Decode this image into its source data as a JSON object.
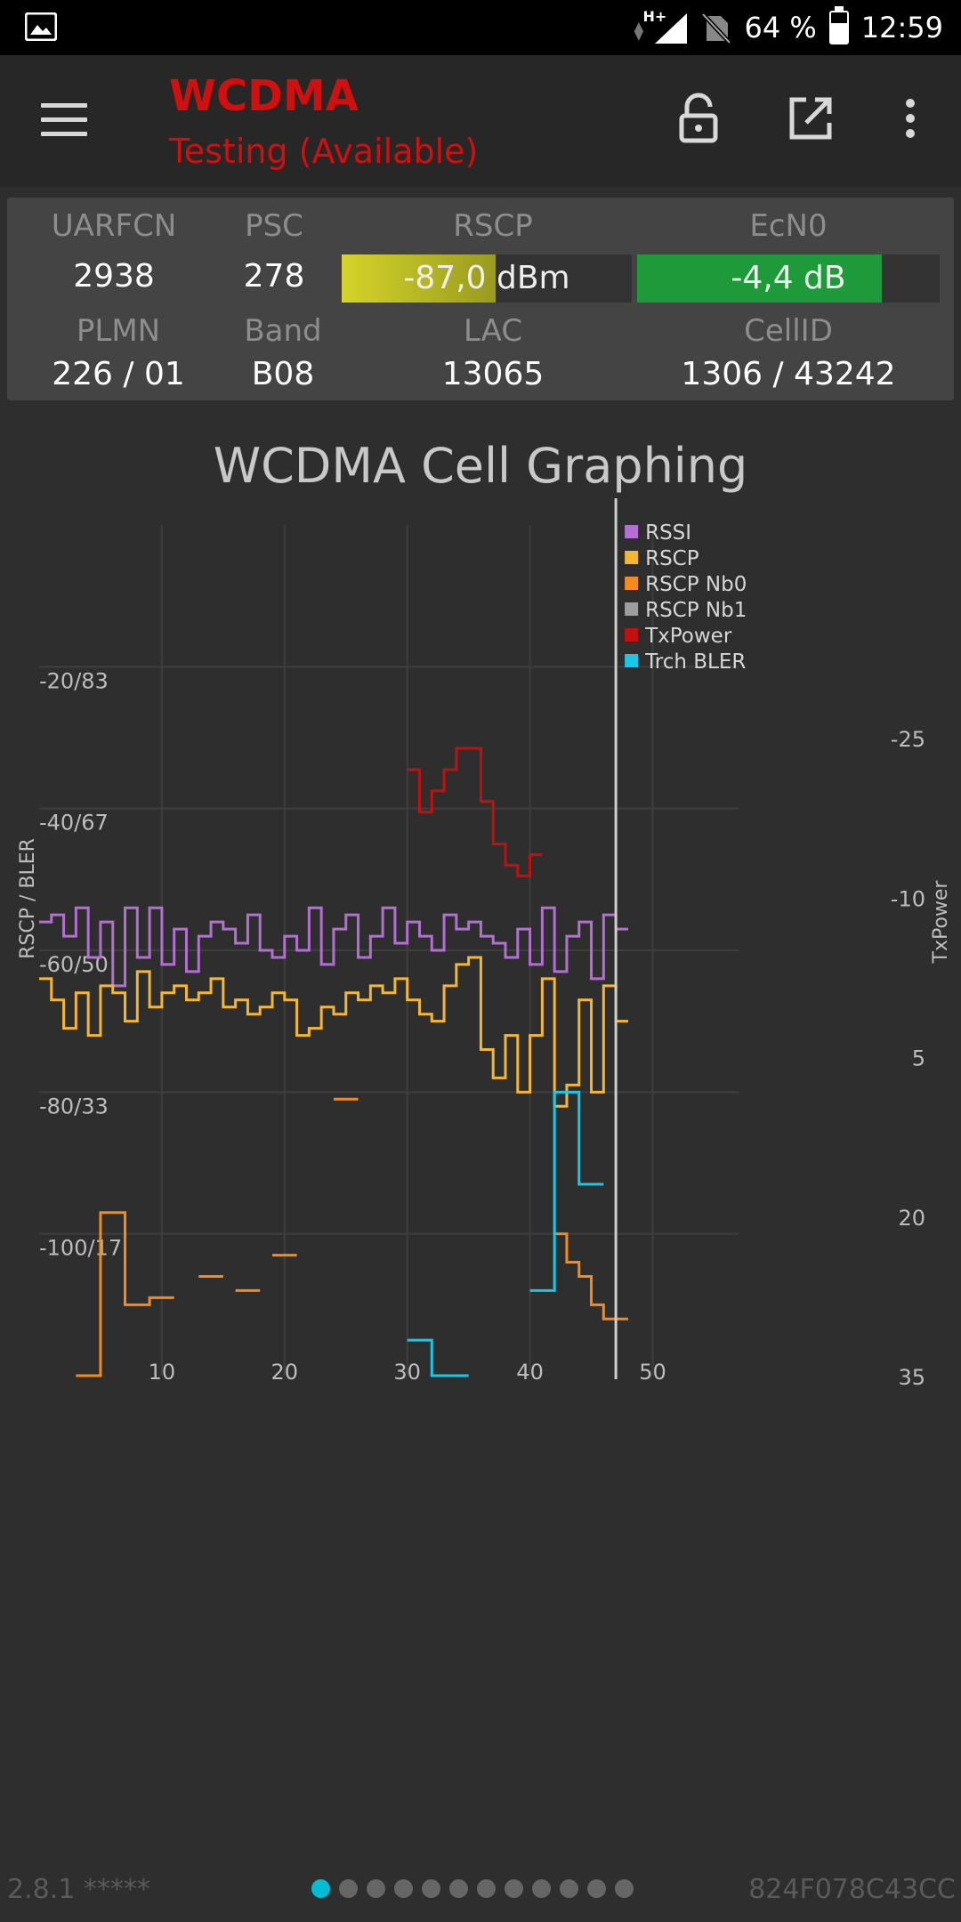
{
  "status_bar": {
    "network": "H+",
    "battery": "64 %",
    "battery_level": 0.64,
    "time": "12:59"
  },
  "app_bar": {
    "title": "WCDMA",
    "subtitle": "Testing (Available)",
    "icons": [
      "menu-icon",
      "lock-open-icon",
      "open-external-icon",
      "more-vert-icon"
    ]
  },
  "info": {
    "uarfcn_label": "UARFCN",
    "uarfcn": "2938",
    "psc_label": "PSC",
    "psc": "278",
    "rscp_label": "RSCP",
    "rscp": "-87,0 dBm",
    "rscp_level": 0.53,
    "ecn0_label": "EcN0",
    "ecn0": "-4,4 dB",
    "ecn0_level": 0.81,
    "plmn_label": "PLMN",
    "plmn": "226 / 01",
    "band_label": "Band",
    "band": "B08",
    "lac_label": "LAC",
    "lac": "13065",
    "cellid_label": "CellID",
    "cellid": "1306 / 43242"
  },
  "colors": {
    "rssi": "#b36fd1",
    "rscp": "#f5b731",
    "rscp_nb0": "#f58a1f",
    "rscp_nb1": "#9e9e9e",
    "txpower": "#c40f0f",
    "trch_bler": "#18c8e8",
    "accent": "#d10f0f",
    "rscp_meter": "#d4d42a",
    "ecn0_meter": "#1f9a3a"
  },
  "chart_data": {
    "type": "line",
    "title": "WCDMA Cell Graphing",
    "ylabel": "RSCP / BLER",
    "y2label": "TxPower",
    "x_ticks": [
      "10",
      "20",
      "30",
      "40",
      "50"
    ],
    "y_ticks": [
      "-20/83",
      "-40/67",
      "-60/50",
      "-80/33",
      "-100/17"
    ],
    "y2_ticks": [
      "-25",
      "-10",
      "5",
      "20",
      "35"
    ],
    "xlim": [
      0,
      57
    ],
    "ylim": [
      -120,
      0
    ],
    "y2lim": [
      -45,
      35
    ],
    "cursor_x": 47,
    "legend": [
      "RSSI",
      "RSCP",
      "RSCP Nb0",
      "RSCP Nb1",
      "TxPower",
      "Trch BLER"
    ],
    "series": [
      {
        "name": "RSSI",
        "axis": "left",
        "x": [
          0,
          1,
          2,
          3,
          4,
          5,
          6,
          7,
          8,
          9,
          10,
          11,
          12,
          13,
          14,
          15,
          16,
          17,
          18,
          19,
          20,
          21,
          22,
          23,
          24,
          25,
          26,
          27,
          28,
          29,
          30,
          31,
          32,
          33,
          34,
          35,
          36,
          37,
          38,
          39,
          40,
          41,
          42,
          43,
          44,
          45,
          46,
          47
        ],
        "y": [
          -56,
          -55,
          -58,
          -54,
          -61,
          -56,
          -65,
          -54,
          -61,
          -54,
          -62,
          -57,
          -63,
          -58,
          -56,
          -57,
          -59,
          -55,
          -60,
          -61,
          -58,
          -60,
          -54,
          -62,
          -57,
          -55,
          -61,
          -58,
          -54,
          -59,
          -56,
          -58,
          -60,
          -55,
          -57,
          -56,
          -58,
          -59,
          -61,
          -57,
          -62,
          -54,
          -63,
          -58,
          -56,
          -64,
          -55,
          -57
        ]
      },
      {
        "name": "RSCP",
        "axis": "left",
        "x": [
          0,
          1,
          2,
          3,
          4,
          5,
          6,
          7,
          8,
          9,
          10,
          11,
          12,
          13,
          14,
          15,
          16,
          17,
          18,
          19,
          20,
          21,
          22,
          23,
          24,
          25,
          26,
          27,
          28,
          29,
          30,
          31,
          32,
          33,
          34,
          35,
          36,
          37,
          38,
          39,
          40,
          41,
          42,
          43,
          44,
          45,
          46,
          47
        ],
        "y": [
          -64,
          -67,
          -71,
          -66,
          -72,
          -65,
          -66,
          -70,
          -63,
          -68,
          -66,
          -65,
          -67,
          -66,
          -64,
          -68,
          -67,
          -69,
          -68,
          -66,
          -67,
          -72,
          -71,
          -68,
          -69,
          -66,
          -67,
          -65,
          -66,
          -64,
          -67,
          -69,
          -70,
          -65,
          -62,
          -61,
          -74,
          -78,
          -72,
          -80,
          -72,
          -64,
          -82,
          -79,
          -67,
          -80,
          -65,
          -70
        ]
      },
      {
        "name": "RSCP Nb0",
        "axis": "left",
        "x": [
          3,
          4,
          5,
          6,
          7,
          8,
          9,
          10,
          11,
          12,
          13,
          14,
          15,
          16,
          17,
          18,
          19,
          20,
          21,
          22,
          23,
          24,
          25,
          26,
          27,
          28,
          29,
          30,
          31,
          32,
          33,
          34,
          35,
          36,
          37,
          38,
          39,
          40,
          41,
          42,
          43,
          44,
          45,
          46,
          47
        ],
        "y": [
          -120,
          -120,
          -97,
          -97,
          -110,
          -110,
          -109,
          -109,
          null,
          null,
          -106,
          -106,
          null,
          -108,
          -108,
          null,
          -103,
          -103,
          null,
          null,
          null,
          -81,
          -81,
          null,
          null,
          null,
          null,
          null,
          null,
          null,
          null,
          null,
          null,
          null,
          null,
          null,
          null,
          null,
          null,
          -100,
          -104,
          -106,
          -110,
          -112,
          -112
        ]
      },
      {
        "name": "RSCP Nb1",
        "axis": "left",
        "x": [],
        "y": []
      },
      {
        "name": "TxPower",
        "axis": "right",
        "x": [
          30,
          31,
          32,
          33,
          34,
          35,
          36,
          37,
          38,
          39,
          40
        ],
        "y": [
          -22,
          -18,
          -20,
          -22,
          -24,
          -24,
          -19,
          -15,
          -13,
          -12,
          -14
        ]
      },
      {
        "name": "Trch BLER",
        "axis": "left",
        "x": [
          30,
          31,
          32,
          33,
          34,
          35,
          36,
          37,
          38,
          39,
          40,
          41,
          42,
          43,
          44,
          45
        ],
        "y": [
          -115,
          -115,
          -120,
          -120,
          -120,
          null,
          null,
          null,
          null,
          null,
          -108,
          -108,
          -80,
          -80,
          -93,
          -93
        ]
      }
    ]
  },
  "footer": {
    "version": "2.8.1 *****",
    "device_id": "824F078C43CC",
    "pages": 12,
    "active_page": 0
  }
}
